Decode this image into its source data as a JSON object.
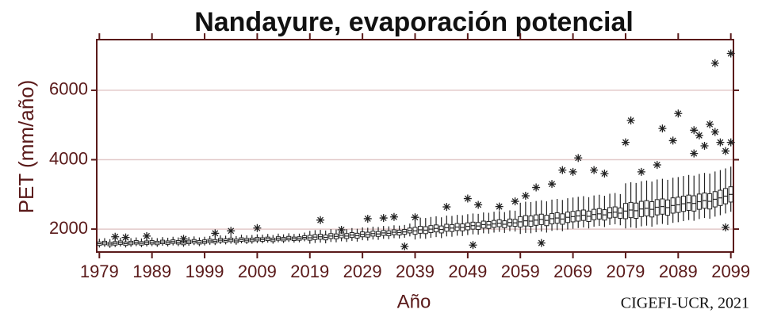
{
  "chart_data": {
    "type": "box",
    "title": "Nandayure, evaporación potencial",
    "ylabel": "PET (mm/año)",
    "xlabel": "Año",
    "credit": "CIGEFI-UCR, 2021",
    "start_year": 1979,
    "xlim": [
      1978.5,
      2099.5
    ],
    "xticks": [
      1979,
      1989,
      1999,
      2009,
      2019,
      2029,
      2039,
      2049,
      2059,
      2069,
      2079,
      2089,
      2099
    ],
    "ylim": [
      1340,
      7460
    ],
    "yticks": [
      2000,
      4000,
      6000
    ],
    "grid": true,
    "color": "#222222",
    "axis_color": "#5a1a1a",
    "median": [
      1580,
      1600,
      1570,
      1590,
      1610,
      1580,
      1600,
      1620,
      1590,
      1610,
      1620,
      1600,
      1630,
      1610,
      1640,
      1620,
      1600,
      1630,
      1650,
      1620,
      1640,
      1660,
      1650,
      1680,
      1670,
      1690,
      1660,
      1700,
      1680,
      1690,
      1710,
      1700,
      1720,
      1690,
      1730,
      1710,
      1740,
      1720,
      1730,
      1760,
      1750,
      1770,
      1780,
      1760,
      1800,
      1790,
      1820,
      1800,
      1830,
      1810,
      1850,
      1840,
      1870,
      1860,
      1890,
      1880,
      1910,
      1900,
      1920,
      1960,
      1950,
      1980,
      1970,
      2000,
      2020,
      1990,
      2040,
      2030,
      2060,
      2050,
      2080,
      2100,
      2090,
      2130,
      2120,
      2150,
      2170,
      2140,
      2190,
      2180,
      2210,
      2240,
      2230,
      2260,
      2280,
      2250,
      2300,
      2320,
      2290,
      2340,
      2360,
      2380,
      2400,
      2370,
      2420,
      2440,
      2410,
      2470,
      2490,
      2460,
      2520,
      2550,
      2530,
      2580,
      2600,
      2570,
      2630,
      2650,
      2620,
      2680,
      2700,
      2730,
      2760,
      2740,
      2790,
      2820,
      2800,
      2860,
      2900,
      2950,
      3000
    ],
    "q1": [
      1530,
      1550,
      1520,
      1540,
      1560,
      1530,
      1550,
      1570,
      1540,
      1560,
      1570,
      1550,
      1580,
      1560,
      1590,
      1570,
      1550,
      1580,
      1600,
      1570,
      1590,
      1610,
      1600,
      1630,
      1620,
      1640,
      1610,
      1650,
      1630,
      1640,
      1660,
      1650,
      1670,
      1640,
      1680,
      1660,
      1690,
      1670,
      1680,
      1710,
      1680,
      1700,
      1710,
      1690,
      1730,
      1720,
      1750,
      1730,
      1760,
      1740,
      1780,
      1770,
      1800,
      1790,
      1820,
      1810,
      1840,
      1830,
      1850,
      1890,
      1850,
      1880,
      1870,
      1900,
      1920,
      1890,
      1940,
      1930,
      1960,
      1950,
      1980,
      2000,
      1990,
      2030,
      2020,
      2050,
      2070,
      2040,
      2090,
      2080,
      2060,
      2090,
      2080,
      2110,
      2130,
      2100,
      2150,
      2170,
      2140,
      2190,
      2210,
      2230,
      2250,
      2220,
      2270,
      2290,
      2260,
      2320,
      2340,
      2310,
      2300,
      2330,
      2310,
      2360,
      2380,
      2350,
      2410,
      2430,
      2400,
      2460,
      2480,
      2510,
      2540,
      2520,
      2570,
      2600,
      2580,
      2640,
      2680,
      2730,
      2780
    ],
    "q3": [
      1630,
      1650,
      1620,
      1640,
      1660,
      1630,
      1650,
      1670,
      1640,
      1660,
      1670,
      1650,
      1680,
      1660,
      1690,
      1670,
      1650,
      1680,
      1700,
      1670,
      1690,
      1710,
      1700,
      1730,
      1720,
      1740,
      1710,
      1750,
      1730,
      1740,
      1760,
      1750,
      1770,
      1740,
      1780,
      1760,
      1790,
      1770,
      1780,
      1810,
      1820,
      1840,
      1850,
      1830,
      1870,
      1860,
      1890,
      1870,
      1900,
      1880,
      1920,
      1910,
      1940,
      1930,
      1960,
      1950,
      1980,
      1970,
      1990,
      2030,
      2050,
      2080,
      2070,
      2100,
      2120,
      2090,
      2140,
      2130,
      2160,
      2150,
      2180,
      2200,
      2190,
      2230,
      2220,
      2250,
      2270,
      2240,
      2290,
      2280,
      2360,
      2390,
      2380,
      2410,
      2430,
      2400,
      2450,
      2470,
      2440,
      2490,
      2510,
      2530,
      2550,
      2520,
      2570,
      2590,
      2560,
      2620,
      2640,
      2610,
      2740,
      2770,
      2750,
      2800,
      2820,
      2790,
      2850,
      2870,
      2840,
      2900,
      2920,
      2950,
      2980,
      2960,
      3010,
      3040,
      3020,
      3080,
      3120,
      3170,
      3220
    ],
    "whisker_low": [
      1470,
      1490,
      1460,
      1480,
      1500,
      1470,
      1490,
      1510,
      1480,
      1500,
      1510,
      1490,
      1520,
      1500,
      1530,
      1510,
      1490,
      1520,
      1540,
      1510,
      1530,
      1550,
      1540,
      1570,
      1560,
      1580,
      1550,
      1590,
      1570,
      1580,
      1600,
      1590,
      1610,
      1580,
      1620,
      1600,
      1630,
      1610,
      1620,
      1650,
      1580,
      1600,
      1610,
      1590,
      1630,
      1620,
      1650,
      1630,
      1660,
      1640,
      1680,
      1670,
      1700,
      1690,
      1720,
      1710,
      1740,
      1730,
      1750,
      1790,
      1700,
      1730,
      1720,
      1750,
      1770,
      1740,
      1790,
      1780,
      1810,
      1800,
      1830,
      1850,
      1840,
      1880,
      1870,
      1900,
      1920,
      1890,
      1940,
      1930,
      1860,
      1890,
      1880,
      1910,
      1930,
      1900,
      1950,
      1970,
      1940,
      1990,
      2010,
      2030,
      2050,
      2020,
      2070,
      2090,
      2060,
      2120,
      2140,
      2110,
      2020,
      2050,
      2030,
      2080,
      2100,
      2070,
      2130,
      2150,
      2120,
      2180,
      2200,
      2230,
      2260,
      2240,
      2290,
      2320,
      2300,
      2360,
      2400,
      2450,
      2500
    ],
    "whisker_high": [
      1720,
      1740,
      1710,
      1730,
      1750,
      1720,
      1740,
      1760,
      1730,
      1750,
      1760,
      1740,
      1770,
      1750,
      1780,
      1760,
      1740,
      1770,
      1790,
      1760,
      1780,
      1800,
      1790,
      1820,
      1810,
      1830,
      1800,
      1840,
      1820,
      1830,
      1850,
      1840,
      1860,
      1830,
      1870,
      1850,
      1880,
      1860,
      1870,
      1900,
      1950,
      1970,
      1980,
      1960,
      2000,
      1990,
      2020,
      2000,
      2030,
      2010,
      2050,
      2040,
      2070,
      2060,
      2090,
      2080,
      2110,
      2100,
      2120,
      2160,
      2300,
      2330,
      2320,
      2350,
      2370,
      2340,
      2390,
      2380,
      2410,
      2400,
      2430,
      2450,
      2440,
      2480,
      2470,
      2500,
      2520,
      2490,
      2540,
      2530,
      2760,
      2790,
      2780,
      2810,
      2830,
      2800,
      2850,
      2870,
      2840,
      2890,
      2910,
      2930,
      2950,
      2920,
      2970,
      2990,
      2960,
      3020,
      3040,
      3010,
      3320,
      3350,
      3330,
      3380,
      3400,
      3370,
      3430,
      3450,
      3420,
      3480,
      3500,
      3530,
      3560,
      3540,
      3590,
      3620,
      3600,
      3660,
      3700,
      3750,
      3800
    ],
    "outliers": {
      "x": [
        1982,
        1984,
        1988,
        1995,
        2001,
        2004,
        2009,
        2021,
        2025,
        2030,
        2033,
        2035,
        2037,
        2039,
        2045,
        2049,
        2050,
        2051,
        2055,
        2058,
        2060,
        2062,
        2063,
        2065,
        2067,
        2069,
        2070,
        2073,
        2075,
        2079,
        2080,
        2082,
        2085,
        2086,
        2088,
        2089,
        2092,
        2092,
        2093,
        2094,
        2095,
        2096,
        2096,
        2097,
        2098,
        2098,
        2099,
        2099
      ],
      "y": [
        1780,
        1760,
        1800,
        1720,
        1880,
        1950,
        2030,
        2260,
        1980,
        2300,
        2320,
        2350,
        1500,
        2340,
        2640,
        2880,
        1540,
        2700,
        2650,
        2800,
        2960,
        3200,
        1600,
        3300,
        3700,
        3650,
        4050,
        3700,
        3600,
        4500,
        5130,
        3650,
        3850,
        4900,
        4550,
        5330,
        4180,
        4850,
        4700,
        4400,
        5020,
        4800,
        6780,
        4500,
        4250,
        2050,
        4500,
        7060
      ]
    }
  }
}
